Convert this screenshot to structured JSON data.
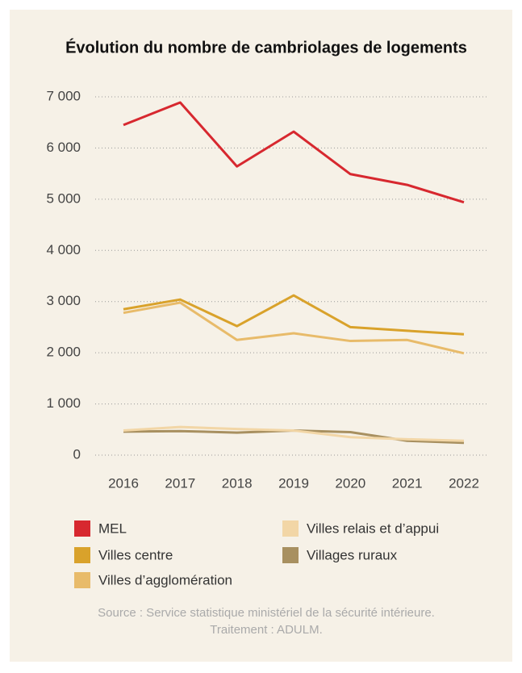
{
  "chart_data": {
    "type": "line",
    "title": "Évolution du nombre de cambriolages de logements",
    "categories": [
      "2016",
      "2017",
      "2018",
      "2019",
      "2020",
      "2021",
      "2022"
    ],
    "series": [
      {
        "name": "MEL",
        "color": "#d7282f",
        "values": [
          6450,
          6890,
          5640,
          6320,
          5490,
          5280,
          4940
        ]
      },
      {
        "name": "Villes centre",
        "color": "#d9a22b",
        "values": [
          2850,
          3040,
          2520,
          3120,
          2500,
          2430,
          2360
        ]
      },
      {
        "name": "Villes d’agglomération",
        "color": "#e8bb6a",
        "values": [
          2780,
          2980,
          2250,
          2380,
          2230,
          2250,
          1990
        ]
      },
      {
        "name": "Villes relais et d’appui",
        "color": "#f2d6a6",
        "values": [
          480,
          550,
          510,
          480,
          350,
          310,
          280
        ]
      },
      {
        "name": "Villages ruraux",
        "color": "#a89060",
        "values": [
          460,
          470,
          440,
          480,
          450,
          280,
          240
        ]
      }
    ],
    "ylim": [
      0,
      7000
    ],
    "yticks": [
      0,
      {
        "value": 1000,
        "label": "1 000"
      },
      {
        "value": 2000,
        "label": "2 000"
      },
      {
        "value": 3000,
        "label": "3 000"
      },
      {
        "value": 4000,
        "label": "4 000"
      },
      {
        "value": 5000,
        "label": "5 000"
      },
      {
        "value": 6000,
        "label": "6 000"
      },
      {
        "value": 7000,
        "label": "7 000"
      }
    ],
    "grid": true,
    "source": [
      "Source : Service statistique ministériel de la sécurité intérieure.",
      "Traitement : ADULM."
    ]
  }
}
